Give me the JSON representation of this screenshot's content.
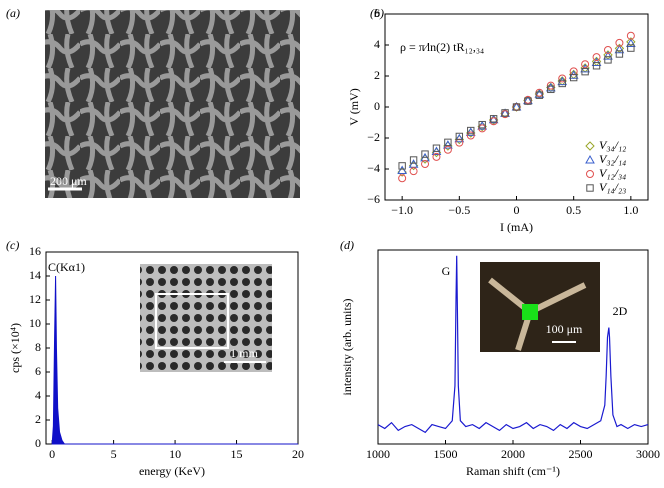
{
  "image_a": {
    "label": "(a)",
    "scale_bar": "200 μm"
  },
  "chart_data": [
    {
      "type": "scatter",
      "label": "(b)",
      "xlabel": "I (mA)",
      "ylabel": "V (mV)",
      "annotations": [
        "ρ = π⁄ln(2) tR₁₂,₃₄"
      ],
      "x": [
        -1,
        -0.9,
        -0.8,
        -0.7,
        -0.6,
        -0.5,
        -0.4,
        -0.3,
        -0.2,
        -0.1,
        0,
        0.1,
        0.2,
        0.3,
        0.4,
        0.5,
        0.6,
        0.7,
        0.8,
        0.9,
        1
      ],
      "series": [
        {
          "name": "V₃₄/₁₂",
          "color": "#9aa62a",
          "marker": "diamond",
          "values": [
            -4.2,
            -3.78,
            -3.36,
            -2.94,
            -2.52,
            -2.1,
            -1.68,
            -1.26,
            -0.84,
            -0.42,
            0,
            0.42,
            0.84,
            1.26,
            1.68,
            2.1,
            2.52,
            2.94,
            3.36,
            3.78,
            4.2
          ]
        },
        {
          "name": "V₃₂/₁₄",
          "color": "#3a5fcd",
          "marker": "triangle",
          "values": [
            -4.1,
            -3.69,
            -3.28,
            -2.87,
            -2.46,
            -2.05,
            -1.64,
            -1.23,
            -0.82,
            -0.41,
            0,
            0.41,
            0.82,
            1.23,
            1.64,
            2.05,
            2.46,
            2.87,
            3.28,
            3.69,
            4.1
          ]
        },
        {
          "name": "V₁₂/₃₄",
          "color": "#e0504f",
          "marker": "circle",
          "values": [
            -4.6,
            -4.14,
            -3.68,
            -3.22,
            -2.76,
            -2.3,
            -1.84,
            -1.38,
            -0.92,
            -0.46,
            0,
            0.46,
            0.92,
            1.38,
            1.84,
            2.3,
            2.76,
            3.22,
            3.68,
            4.14,
            4.6
          ]
        },
        {
          "name": "V₁₄/₂₃",
          "color": "#555555",
          "marker": "square",
          "values": [
            -3.8,
            -3.42,
            -3.04,
            -2.66,
            -2.28,
            -1.9,
            -1.52,
            -1.14,
            -0.76,
            -0.38,
            0,
            0.38,
            0.76,
            1.14,
            1.52,
            1.9,
            2.28,
            2.66,
            3.04,
            3.42,
            3.8
          ]
        }
      ],
      "xlim": [
        -1.15,
        1.15
      ],
      "xticks": [
        {
          "value": -1,
          "label": "−1.0"
        },
        {
          "value": -0.5,
          "label": "−0.5"
        },
        0,
        0.5,
        {
          "value": 1,
          "label": "1.0"
        }
      ],
      "ylim": [
        -6,
        6
      ],
      "yticks": [
        {
          "value": -6,
          "label": "−6"
        },
        {
          "value": -4,
          "label": "−4"
        },
        {
          "value": -2,
          "label": "−2"
        },
        0,
        2,
        4,
        6
      ],
      "legend": "lower right"
    },
    {
      "type": "area",
      "label": "(c)",
      "xlabel": "energy (KeV)",
      "ylabel": "cps (×10⁴)",
      "annotations": [
        "C(Kα1)",
        "1 mm"
      ],
      "color": "#1010c8",
      "x": [
        0,
        0.1,
        0.2,
        0.28,
        0.35,
        0.45,
        0.6,
        0.8,
        1.0,
        20
      ],
      "values": [
        0,
        1.5,
        9,
        14,
        8,
        3,
        1,
        0.3,
        0,
        0
      ],
      "xlim": [
        -0.5,
        20
      ],
      "xticks": [
        0,
        5,
        10,
        15,
        20
      ],
      "ylim": [
        0,
        16
      ],
      "yticks": [
        0,
        2,
        4,
        6,
        8,
        10,
        12,
        14,
        16
      ]
    },
    {
      "type": "line",
      "label": "(d)",
      "xlabel": "Raman shift (cm⁻¹)",
      "ylabel": "intensity (arb. units)",
      "annotations": [
        "G",
        "2D",
        "100 μm"
      ],
      "color": "#1a1ad0",
      "x": [
        1000,
        1050,
        1100,
        1150,
        1200,
        1250,
        1300,
        1350,
        1400,
        1450,
        1500,
        1550,
        1570,
        1578,
        1583,
        1588,
        1595,
        1610,
        1650,
        1700,
        1750,
        1800,
        1850,
        1900,
        1950,
        2000,
        2050,
        2100,
        2150,
        2200,
        2250,
        2300,
        2350,
        2400,
        2450,
        2500,
        2550,
        2600,
        2650,
        2680,
        2690,
        2700,
        2710,
        2715,
        2725,
        2740,
        2770,
        2800,
        2850,
        2900,
        2950,
        3000
      ],
      "values": [
        0.1,
        0.08,
        0.11,
        0.07,
        0.09,
        0.1,
        0.08,
        0.06,
        0.1,
        0.09,
        0.08,
        0.12,
        0.3,
        0.75,
        0.97,
        0.7,
        0.3,
        0.12,
        0.09,
        0.1,
        0.08,
        0.11,
        0.09,
        0.07,
        0.1,
        0.08,
        0.09,
        0.11,
        0.08,
        0.1,
        0.09,
        0.07,
        0.1,
        0.08,
        0.11,
        0.09,
        0.08,
        0.1,
        0.12,
        0.2,
        0.35,
        0.55,
        0.6,
        0.55,
        0.35,
        0.15,
        0.09,
        0.1,
        0.08,
        0.1,
        0.09,
        0.1
      ],
      "xlim": [
        1000,
        3000
      ],
      "xticks": [
        1000,
        1500,
        2000,
        2500,
        3000
      ],
      "ylim": [
        0,
        1
      ]
    }
  ]
}
